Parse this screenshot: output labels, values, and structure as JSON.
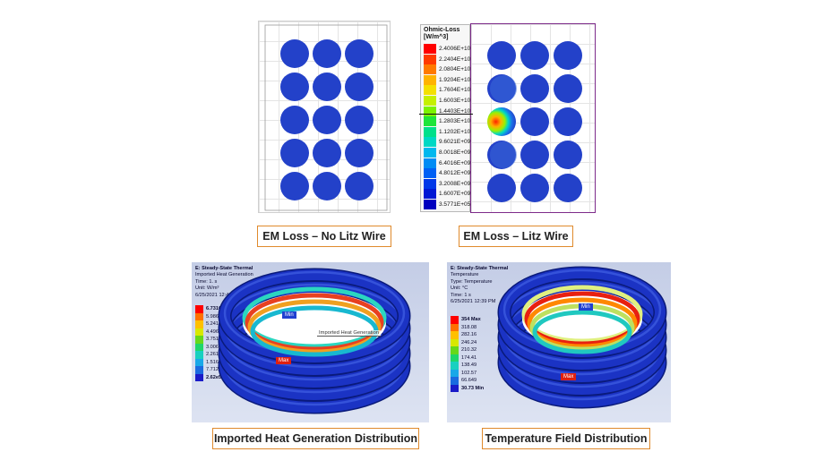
{
  "colors": {
    "caption_border": "#e08a2c",
    "circle_blue": "#2341c9",
    "thermal_bg": "#c9d3ea",
    "ring_blue": "#1b33c4"
  },
  "panel_em_no_litz": {
    "caption": "EM Loss – No Litz Wire"
  },
  "panel_em_litz": {
    "caption": "EM Loss – Litz Wire",
    "legend": {
      "title_line1": "Ohmic-Loss",
      "title_line2": "[W/m^3]",
      "entries": [
        {
          "label": "2.4006E+10",
          "color": "#ff0000"
        },
        {
          "label": "2.2404E+10",
          "color": "#ff3a00"
        },
        {
          "label": "2.0804E+10",
          "color": "#ff7a00"
        },
        {
          "label": "1.9204E+10",
          "color": "#ffb300"
        },
        {
          "label": "1.7604E+10",
          "color": "#f4e000"
        },
        {
          "label": "1.6003E+10",
          "color": "#c5f000"
        },
        {
          "label": "1.4403E+10",
          "color": "#7cf200"
        },
        {
          "label": "1.2803E+10",
          "color": "#1fe53a"
        },
        {
          "label": "1.1202E+10",
          "color": "#00e08a"
        },
        {
          "label": "9.6021E+09",
          "color": "#00d8c4"
        },
        {
          "label": "8.0018E+09",
          "color": "#00b8ee"
        },
        {
          "label": "6.4016E+09",
          "color": "#008cf4"
        },
        {
          "label": "4.8012E+09",
          "color": "#0060f4"
        },
        {
          "label": "3.2008E+09",
          "color": "#0038e8"
        },
        {
          "label": "1.6007E+09",
          "color": "#0018d4"
        },
        {
          "label": "3.5771E+05",
          "color": "#0000bf"
        }
      ]
    }
  },
  "panel_heat_gen": {
    "caption": "Imported Heat Generation Distribution",
    "header": {
      "line1": "E: Steady-State Thermal",
      "line2": "Imported Heat Generation",
      "line3": "Time: 1. s",
      "line4": "Unit: W/m³",
      "line5": "6/25/2021 12:43 PM"
    },
    "legend": [
      {
        "label": "6.7316e7 Max",
        "color": "#ff0000",
        "bold": true
      },
      {
        "label": "5.9865e7",
        "color": "#ff7000"
      },
      {
        "label": "5.2415e7",
        "color": "#ffc000"
      },
      {
        "label": "4.4965e7",
        "color": "#d8e800"
      },
      {
        "label": "3.7514e7",
        "color": "#66d81a"
      },
      {
        "label": "3.0064e7",
        "color": "#1ed66a"
      },
      {
        "label": "2.2613e7",
        "color": "#18d0c0"
      },
      {
        "label": "1.5163e7",
        "color": "#18a8e8"
      },
      {
        "label": "7.7124e6",
        "color": "#1a6ae0"
      },
      {
        "label": "2.62e5 Min",
        "color": "#1a1ac8",
        "bold": true
      }
    ],
    "min_tag": "Min",
    "max_tag": "Max",
    "overlay_label": "Imported Heat Generation"
  },
  "panel_temperature": {
    "caption": "Temperature Field Distribution",
    "header": {
      "line1": "E: Steady-State Thermal",
      "line2": "Temperature",
      "line3": "Type: Temperature",
      "line4": "Unit: °C",
      "line5": "Time: 1 s",
      "line6": "6/25/2021 12:39 PM"
    },
    "legend": [
      {
        "label": "354 Max",
        "color": "#ff0000",
        "bold": true
      },
      {
        "label": "318.08",
        "color": "#ff7000"
      },
      {
        "label": "282.16",
        "color": "#ffc000"
      },
      {
        "label": "246.24",
        "color": "#d8e800"
      },
      {
        "label": "210.32",
        "color": "#66d81a"
      },
      {
        "label": "174.41",
        "color": "#1ed66a"
      },
      {
        "label": "138.49",
        "color": "#18d0c0"
      },
      {
        "label": "102.57",
        "color": "#18a8e8"
      },
      {
        "label": "66.649",
        "color": "#1a6ae0"
      },
      {
        "label": "30.73 Min",
        "color": "#1a1ac8",
        "bold": true
      }
    ],
    "min_tag": "Min",
    "max_tag": "Max"
  }
}
